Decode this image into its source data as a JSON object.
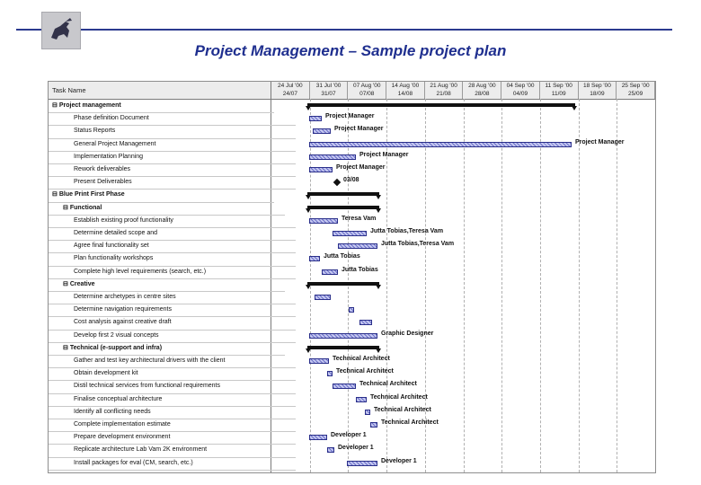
{
  "header": {
    "title": "Project Management – Sample project plan"
  },
  "grid": {
    "task_column_header": "Task Name"
  },
  "timescale": [
    {
      "top": "24 Jul '00",
      "bottom": "24/07"
    },
    {
      "top": "31 Jul '00",
      "bottom": "31/07"
    },
    {
      "top": "07 Aug '00",
      "bottom": "07/08"
    },
    {
      "top": "14 Aug '00",
      "bottom": "14/08"
    },
    {
      "top": "21 Aug '00",
      "bottom": "21/08"
    },
    {
      "top": "28 Aug '00",
      "bottom": "28/08"
    },
    {
      "top": "04 Sep '00",
      "bottom": "04/09"
    },
    {
      "top": "11 Sep '00",
      "bottom": "11/09"
    },
    {
      "top": "18 Sep '00",
      "bottom": "18/09"
    },
    {
      "top": "25 Sep '00",
      "bottom": "25/09"
    }
  ],
  "tasks": [
    {
      "name": "Project management",
      "outline": "⊟",
      "level": 0,
      "summary": true
    },
    {
      "name": "Phase definition Document",
      "level": 2,
      "resource": "Project Manager"
    },
    {
      "name": "Status Reports",
      "level": 2,
      "resource": "Project Manager"
    },
    {
      "name": "General Project Management",
      "level": 2,
      "resource": "Project Manager"
    },
    {
      "name": "Implementation Planning",
      "level": 2,
      "resource": "Project Manager"
    },
    {
      "name": "Rework deliverables",
      "level": 2,
      "resource": "Project Manager"
    },
    {
      "name": "Present Deliverables",
      "level": 2,
      "resource": "03/08"
    },
    {
      "name": "Blue Print First Phase",
      "outline": "⊟",
      "level": 0,
      "summary": true
    },
    {
      "name": "Functional",
      "outline": "⊟",
      "level": 1,
      "summary": true
    },
    {
      "name": "Establish existing proof functionality",
      "level": 2,
      "resource": "Teresa Vam"
    },
    {
      "name": "Determine detailed scope and",
      "level": 2,
      "resource": "Jutta Tobias,Teresa Vam"
    },
    {
      "name": "Agree final functionality set",
      "level": 2,
      "resource": "Jutta Tobias,Teresa Vam"
    },
    {
      "name": "Plan functionality workshops",
      "level": 2,
      "resource": "Jutta Tobias"
    },
    {
      "name": "Complete high level requirements (search, etc.)",
      "level": 2,
      "resource": "Jutta Tobias"
    },
    {
      "name": "Creative",
      "outline": "⊟",
      "level": 1,
      "summary": true
    },
    {
      "name": "Determine archetypes in centre sites",
      "level": 2,
      "resource": ""
    },
    {
      "name": "Determine navigation requirements",
      "level": 2,
      "resource": ""
    },
    {
      "name": "Cost analysis against creative draft",
      "level": 2,
      "resource": ""
    },
    {
      "name": "Develop first 2 visual concepts",
      "level": 2,
      "resource": "Graphic Designer"
    },
    {
      "name": "Technical (e-support and infra)",
      "outline": "⊟",
      "level": 1,
      "summary": true
    },
    {
      "name": "Gather and test key architectural drivers with the client",
      "level": 2,
      "resource": "Technical Architect"
    },
    {
      "name": "Obtain development kit",
      "level": 2,
      "resource": "Technical Architect"
    },
    {
      "name": "Distil technical services from functional requirements",
      "level": 2,
      "resource": "Technical Architect"
    },
    {
      "name": "Finalise conceptual architecture",
      "level": 2,
      "resource": "Technical Architect"
    },
    {
      "name": "Identify all conflicting needs",
      "level": 2,
      "resource": "Technical Architect"
    },
    {
      "name": "Complete implementation estimate",
      "level": 2,
      "resource": "Technical Architect"
    },
    {
      "name": "Prepare development environment",
      "level": 2,
      "resource": "Developer 1"
    },
    {
      "name": "Replicate architecture Lab Vam 2K environment",
      "level": 2,
      "resource": "Developer 1"
    },
    {
      "name": "Install packages for eval (CM, search, etc.)",
      "level": 2,
      "resource": "Developer 1"
    }
  ]
}
